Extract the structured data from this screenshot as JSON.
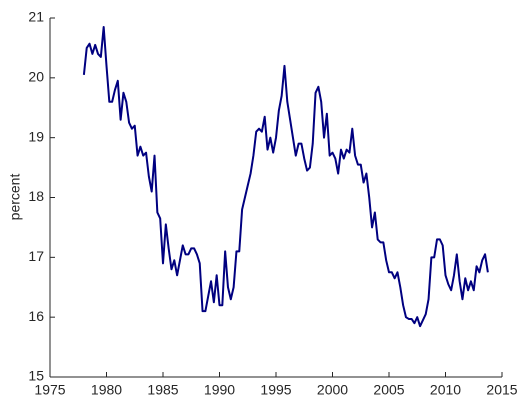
{
  "chart_data": {
    "type": "line",
    "y_label": "percent",
    "x": [
      1978,
      1978.25,
      1978.5,
      1978.75,
      1979,
      1979.25,
      1979.5,
      1979.75,
      1980,
      1980.25,
      1980.5,
      1980.75,
      1981,
      1981.25,
      1981.5,
      1981.75,
      1982,
      1982.25,
      1982.5,
      1982.75,
      1983,
      1983.25,
      1983.5,
      1983.75,
      1984,
      1984.25,
      1984.5,
      1984.75,
      1985,
      1985.25,
      1985.5,
      1985.75,
      1986,
      1986.25,
      1986.5,
      1986.75,
      1987,
      1987.25,
      1987.5,
      1987.75,
      1988,
      1988.25,
      1988.5,
      1988.75,
      1989,
      1989.25,
      1989.5,
      1989.75,
      1990,
      1990.25,
      1990.5,
      1990.75,
      1991,
      1991.25,
      1991.5,
      1991.75,
      1992,
      1992.25,
      1992.5,
      1992.75,
      1993,
      1993.25,
      1993.5,
      1993.75,
      1994,
      1994.25,
      1994.5,
      1994.75,
      1995,
      1995.25,
      1995.5,
      1995.75,
      1996,
      1996.25,
      1996.5,
      1996.75,
      1997,
      1997.25,
      1997.5,
      1997.75,
      1998,
      1998.25,
      1998.5,
      1998.75,
      1999,
      1999.25,
      1999.5,
      1999.75,
      2000,
      2000.25,
      2000.5,
      2000.75,
      2001,
      2001.25,
      2001.5,
      2001.75,
      2002,
      2002.25,
      2002.5,
      2002.75,
      2003,
      2003.25,
      2003.5,
      2003.75,
      2004,
      2004.25,
      2004.5,
      2004.75,
      2005,
      2005.25,
      2005.5,
      2005.75,
      2006,
      2006.25,
      2006.5,
      2006.75,
      2007,
      2007.25,
      2007.5,
      2007.75,
      2008,
      2008.25,
      2008.5,
      2008.75,
      2009,
      2009.25,
      2009.5,
      2009.75,
      2010,
      2010.25,
      2010.5,
      2010.75,
      2011,
      2011.25,
      2011.5,
      2011.75,
      2012,
      2012.25,
      2012.5,
      2012.75,
      2013,
      2013.25,
      2013.5,
      2013.75
    ],
    "series": [
      {
        "color": "#000080",
        "values": [
          20.05,
          20.5,
          20.57,
          20.4,
          20.55,
          20.4,
          20.35,
          20.85,
          20.2,
          19.6,
          19.6,
          19.8,
          19.95,
          19.3,
          19.75,
          19.6,
          19.25,
          19.15,
          19.2,
          18.7,
          18.85,
          18.7,
          18.75,
          18.35,
          18.1,
          18.7,
          17.75,
          17.65,
          16.9,
          17.55,
          17.15,
          16.8,
          16.95,
          16.7,
          16.95,
          17.2,
          17.05,
          17.05,
          17.15,
          17.15,
          17.05,
          16.9,
          16.1,
          16.1,
          16.35,
          16.6,
          16.25,
          16.7,
          16.2,
          16.2,
          17.1,
          16.5,
          16.3,
          16.5,
          17.1,
          17.1,
          17.8,
          18,
          18.2,
          18.4,
          18.7,
          19.1,
          19.15,
          19.1,
          19.35,
          18.8,
          19,
          18.75,
          19,
          19.45,
          19.7,
          20.2,
          19.6,
          19.3,
          19,
          18.7,
          18.9,
          18.9,
          18.65,
          18.45,
          18.5,
          18.9,
          19.75,
          19.85,
          19.6,
          19,
          19.4,
          18.7,
          18.75,
          18.65,
          18.4,
          18.8,
          18.65,
          18.8,
          18.75,
          19.15,
          18.7,
          18.55,
          18.55,
          18.25,
          18.4,
          18,
          17.5,
          17.75,
          17.3,
          17.25,
          17.25,
          16.95,
          16.75,
          16.75,
          16.65,
          16.75,
          16.5,
          16.2,
          16,
          15.97,
          15.97,
          15.9,
          16,
          15.85,
          15.95,
          16.05,
          16.3,
          17,
          17,
          17.3,
          17.3,
          17.2,
          16.7,
          16.55,
          16.45,
          16.7,
          17.05,
          16.6,
          16.3,
          16.65,
          16.45,
          16.6,
          16.45,
          16.85,
          16.75,
          16.95,
          17.05,
          16.75
        ]
      }
    ],
    "xlim": [
      1975,
      2015
    ],
    "xticks": [
      1975,
      1980,
      1985,
      1990,
      1995,
      2000,
      2005,
      2010,
      2015
    ],
    "ylim": [
      15,
      21
    ],
    "yticks": [
      15,
      16,
      17,
      18,
      19,
      20,
      21
    ]
  }
}
